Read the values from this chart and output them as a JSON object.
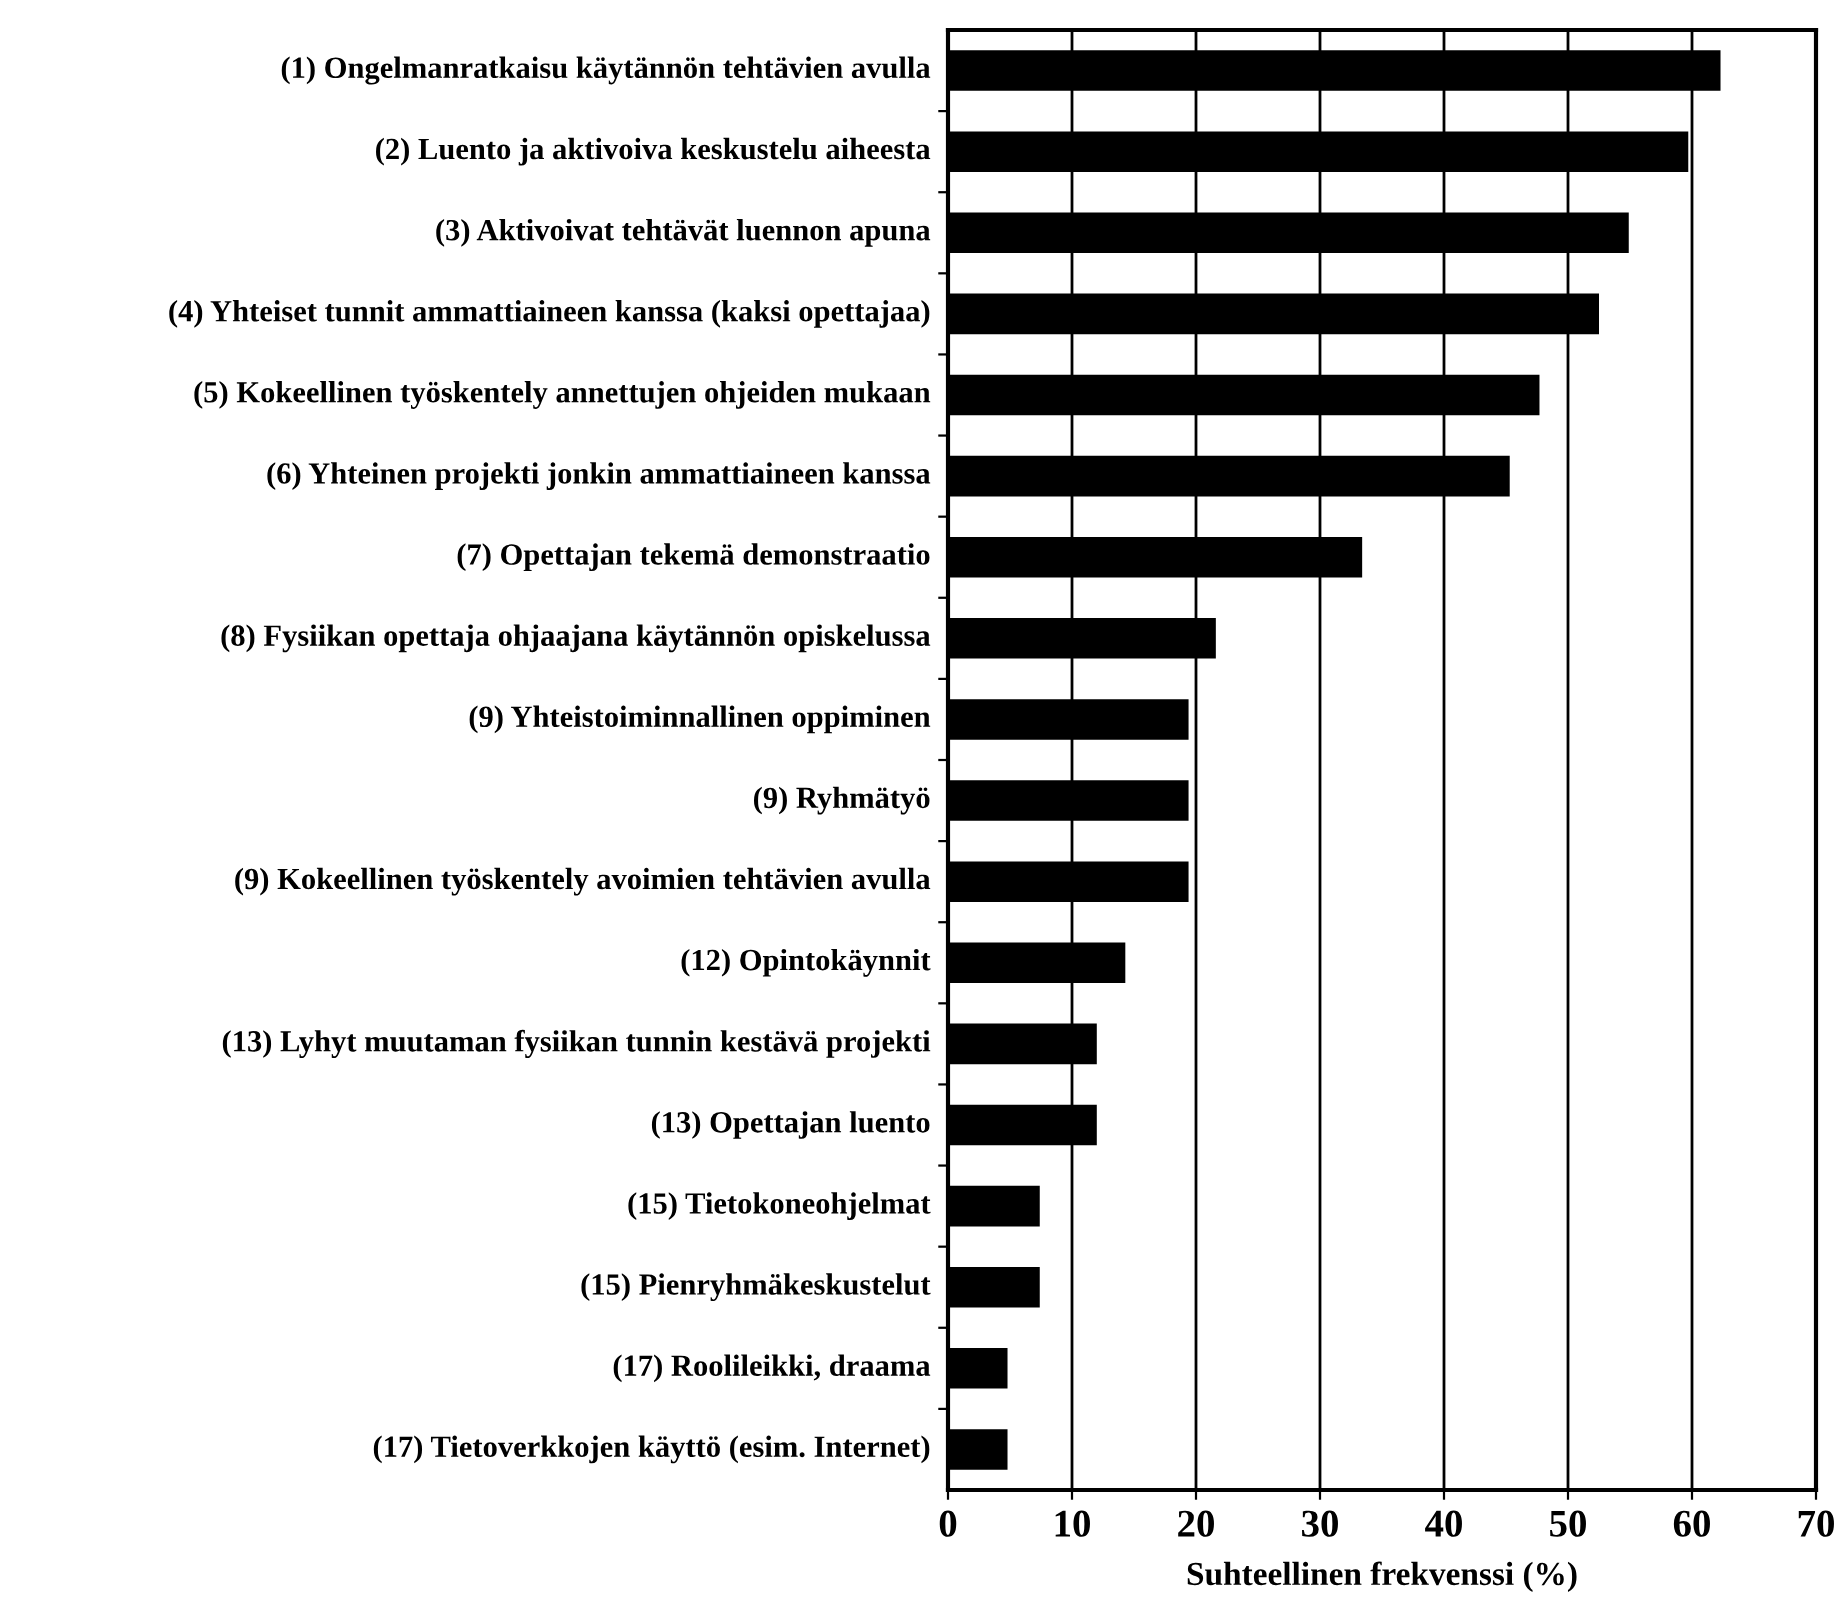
{
  "chart_data": {
    "type": "bar",
    "orientation": "horizontal",
    "xlabel": "Suhteellinen frekvenssi (%)",
    "categories": [
      "(1) Ongelmanratkaisu käytännön tehtävien avulla",
      "(2) Luento ja aktivoiva keskustelu aiheesta",
      "(3) Aktivoivat tehtävät luennon apuna",
      "(4) Yhteiset tunnit ammattiaineen kanssa (kaksi opettajaa)",
      "(5) Kokeellinen työskentely annettujen ohjeiden mukaan",
      "(6) Yhteinen projekti jonkin ammattiaineen kanssa",
      "(7) Opettajan tekemä demonstraatio",
      "(8) Fysiikan opettaja ohjaajana käytännön opiskelussa",
      "(9) Yhteistoiminnallinen oppiminen",
      "(9) Ryhmätyö",
      "(9) Kokeellinen työskentely avoimien tehtävien avulla",
      "(12) Opintokäynnit",
      "(13) Lyhyt muutaman fysiikan tunnin kestävä projekti",
      "(13) Opettajan luento",
      "(15) Tietokoneohjelmat",
      "(15) Pienryhmäkeskustelut",
      "(17) Roolileikki, draama",
      "(17) Tietoverkkojen käyttö (esim. Internet)"
    ],
    "values": [
      62.3,
      59.7,
      54.9,
      52.5,
      47.7,
      45.3,
      33.4,
      21.6,
      19.4,
      19.4,
      19.4,
      14.3,
      12.0,
      12.0,
      7.4,
      7.4,
      4.8,
      4.8
    ],
    "color": "#000000",
    "xlim": [
      0,
      70
    ],
    "xticks": [
      0,
      10,
      20,
      30,
      40,
      50,
      60,
      70
    ],
    "grid": "x",
    "legend": false
  }
}
